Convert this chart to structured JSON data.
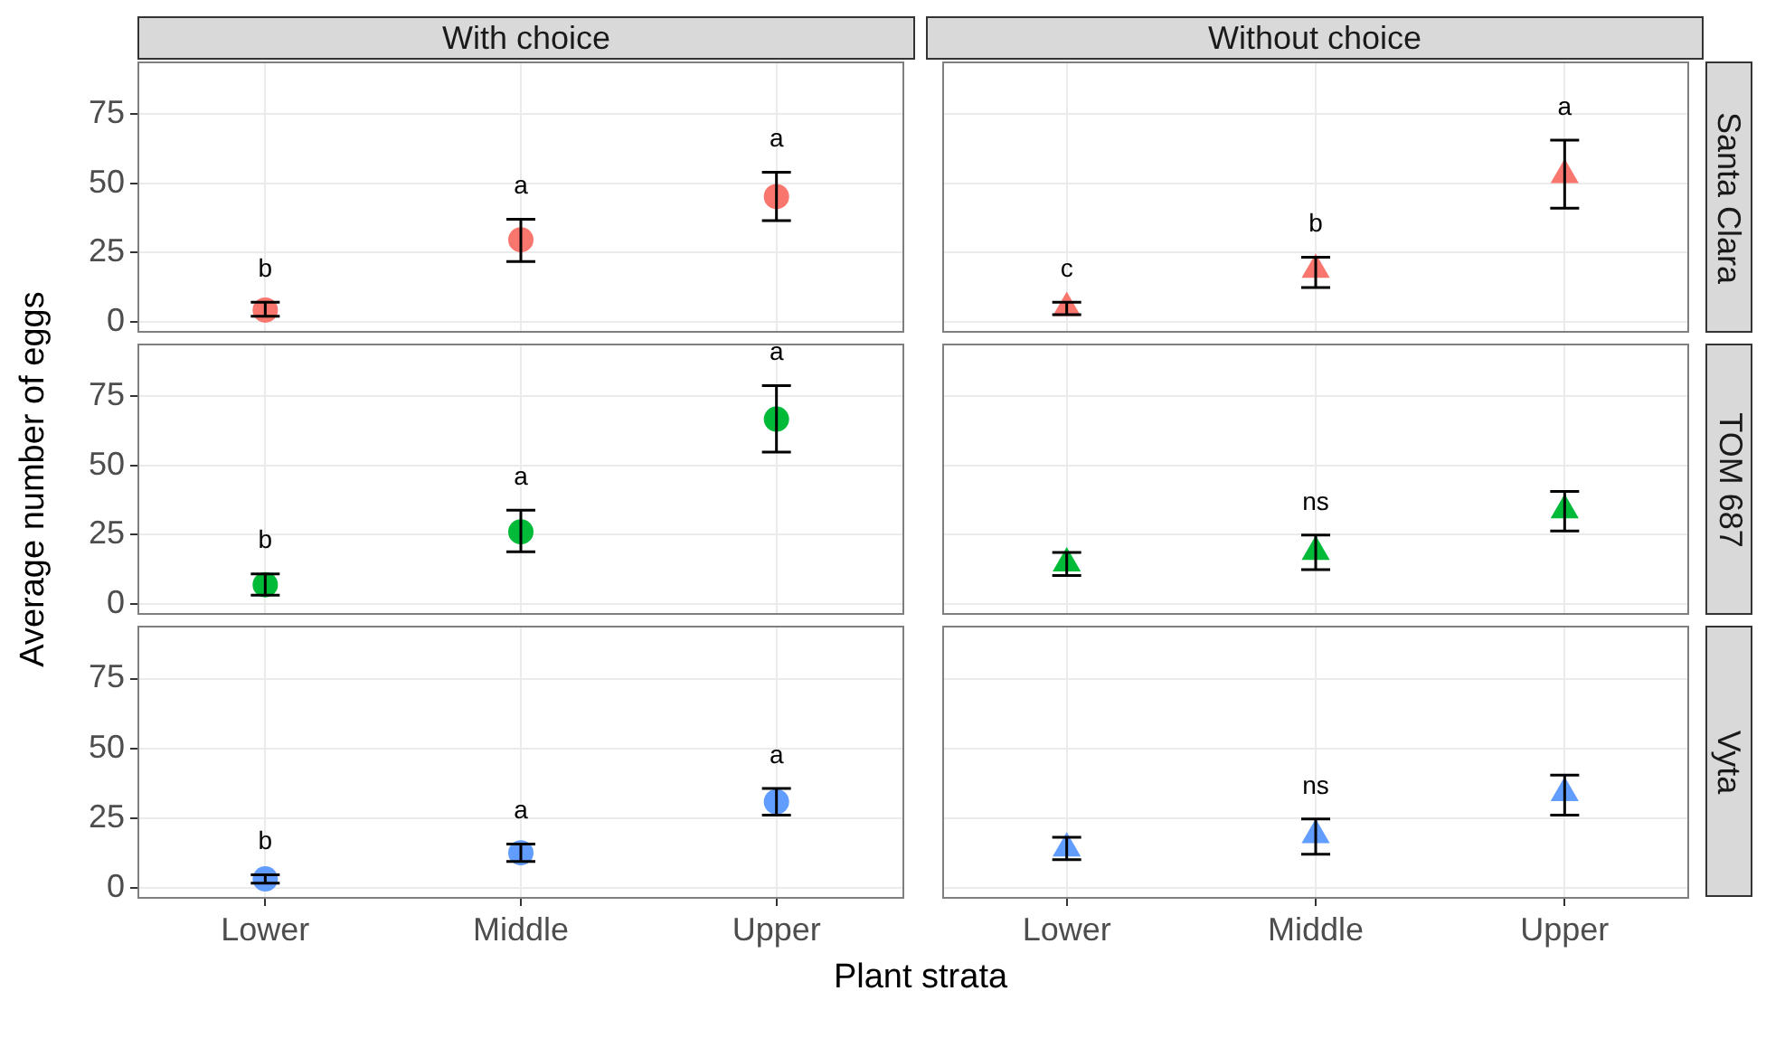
{
  "chart_data": [
    {
      "type": "scatter",
      "title": "With choice",
      "categories": [
        "Lower",
        "Middle",
        "Upper"
      ],
      "marker": "circle",
      "grid": true,
      "tick_labels": "y",
      "ylim": [
        -4,
        94
      ],
      "yticks": [
        0,
        25,
        50,
        75
      ],
      "series": [
        {
          "color": "#f8766d",
          "values": [
            4.2,
            29.6,
            45.2
          ],
          "errors": [
            [
              2,
              7
            ],
            [
              21.7,
              37
            ],
            [
              36.5,
              54
            ]
          ]
        }
      ],
      "annotations": [
        {
          "text": "b",
          "x": "Lower",
          "y": 4.2
        },
        {
          "text": "a",
          "x": "Middle",
          "y": 29.6
        },
        {
          "text": "a",
          "x": "Upper",
          "y": 45.2
        }
      ]
    },
    {
      "type": "scatter",
      "title": "Without choice",
      "y2label": "Santa Clara",
      "categories": [
        "Lower",
        "Middle",
        "Upper"
      ],
      "marker": "triangle",
      "grid": true,
      "tick_labels": false,
      "ylim": [
        -4,
        94
      ],
      "yticks": [
        0,
        25,
        50,
        75
      ],
      "series": [
        {
          "color": "#f8766d",
          "values": [
            5,
            18.8,
            53
          ],
          "errors": [
            [
              2.5,
              7
            ],
            [
              12.3,
              23.3
            ],
            [
              41,
              65.6
            ]
          ]
        }
      ],
      "annotations": [
        {
          "text": "c",
          "x": "Lower",
          "y": 5
        },
        {
          "text": "b",
          "x": "Middle",
          "y": 18.8
        },
        {
          "text": "a",
          "x": "Upper",
          "y": 53
        }
      ]
    },
    {
      "type": "scatter",
      "ylabel": "Average number of eggs",
      "categories": [
        "Lower",
        "Middle",
        "Upper"
      ],
      "marker": "circle",
      "grid": true,
      "tick_labels": "y",
      "ylim": [
        -4,
        94
      ],
      "yticks": [
        0,
        25,
        50,
        75
      ],
      "series": [
        {
          "color": "#00ba38",
          "values": [
            6.9,
            26,
            66.7
          ],
          "errors": [
            [
              3.1,
              10.8
            ],
            [
              18.8,
              33.8
            ],
            [
              54.8,
              78.8
            ]
          ]
        }
      ],
      "annotations": [
        {
          "text": "b",
          "x": "Lower",
          "y": 6.9
        },
        {
          "text": "a",
          "x": "Middle",
          "y": 26
        },
        {
          "text": "a",
          "x": "Upper",
          "y": 66.7
        }
      ]
    },
    {
      "type": "scatter",
      "y2label": "TOM 687",
      "categories": [
        "Lower",
        "Middle",
        "Upper"
      ],
      "marker": "triangle",
      "grid": true,
      "tick_labels": false,
      "ylim": [
        -4,
        94
      ],
      "yticks": [
        0,
        25,
        50,
        75
      ],
      "series": [
        {
          "color": "#00ba38",
          "values": [
            14.6,
            18.8,
            33.8
          ],
          "errors": [
            [
              10.2,
              18.5
            ],
            [
              12.3,
              24.8
            ],
            [
              26.3,
              40.6
            ]
          ]
        }
      ],
      "annotations": [
        {
          "text": "ns",
          "x": "Middle",
          "y": 18.8
        }
      ]
    },
    {
      "type": "scatter",
      "xlabel": "Plant strata",
      "categories": [
        "Lower",
        "Middle",
        "Upper"
      ],
      "marker": "circle",
      "grid": true,
      "ylim": [
        -4,
        94
      ],
      "yticks": [
        0,
        25,
        50,
        75
      ],
      "series": [
        {
          "color": "#619cff",
          "values": [
            3.1,
            12.5,
            30.8
          ],
          "errors": [
            [
              1.6,
              4.6
            ],
            [
              9.4,
              15.6
            ],
            [
              26,
              35.6
            ]
          ]
        }
      ],
      "annotations": [
        {
          "text": "b",
          "x": "Lower",
          "y": 3.1
        },
        {
          "text": "a",
          "x": "Middle",
          "y": 12.5
        },
        {
          "text": "a",
          "x": "Upper",
          "y": 30.8
        }
      ]
    },
    {
      "type": "scatter",
      "y2label": "Vyta",
      "categories": [
        "Lower",
        "Middle",
        "Upper"
      ],
      "marker": "triangle",
      "grid": true,
      "tick_labels": "x",
      "ylim": [
        -4,
        94
      ],
      "yticks": [
        0,
        25,
        50,
        75
      ],
      "series": [
        {
          "color": "#619cff",
          "values": [
            14.1,
            18.9,
            34
          ],
          "errors": [
            [
              10,
              18.1
            ],
            [
              12,
              24.6
            ],
            [
              26,
              40.4
            ]
          ]
        }
      ],
      "annotations": [
        {
          "text": "ns",
          "x": "Middle",
          "y": 18.9
        }
      ]
    }
  ]
}
